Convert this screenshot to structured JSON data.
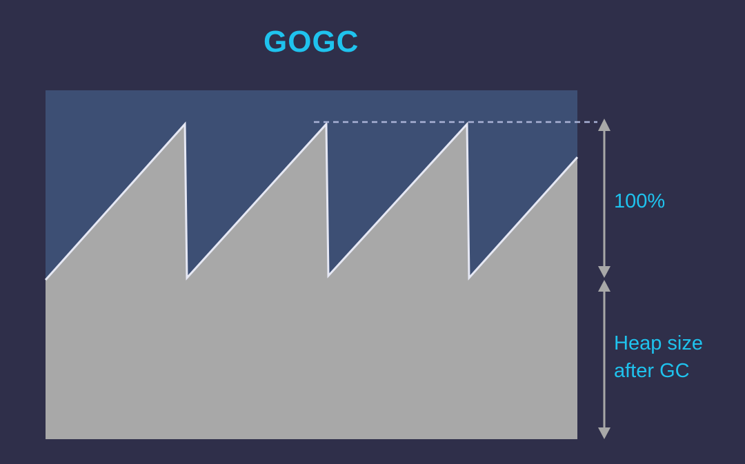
{
  "title": "GOGC",
  "labels": {
    "growth": "100%",
    "heap_line1": "Heap size",
    "heap_line2": "after GC"
  },
  "colors": {
    "background": "#2f2f4a",
    "headroom": "#3d4f74",
    "live_heap": "#a8a8a8",
    "text": "#1fc3ee",
    "sawtooth_line": "#e6e8f4",
    "arrows": "#a8a8a8"
  }
}
